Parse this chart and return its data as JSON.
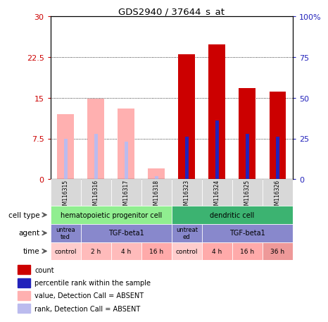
{
  "title": "GDS2940 / 37644_s_at",
  "samples": [
    "GSM116315",
    "GSM116316",
    "GSM116317",
    "GSM116318",
    "GSM116323",
    "GSM116324",
    "GSM116325",
    "GSM116326"
  ],
  "expression_values": [
    12.0,
    14.8,
    13.0,
    2.0,
    23.0,
    24.8,
    16.8,
    16.2
  ],
  "expression_absent": [
    true,
    true,
    true,
    true,
    false,
    false,
    false,
    false
  ],
  "percentile_values": [
    25.0,
    28.0,
    23.0,
    2.0,
    26.0,
    36.0,
    28.0,
    26.0
  ],
  "percentile_absent": [
    true,
    true,
    true,
    true,
    false,
    false,
    false,
    false
  ],
  "ylim_left": [
    0,
    30
  ],
  "ylim_right": [
    0,
    100
  ],
  "yticks_left": [
    0,
    7.5,
    15,
    22.5,
    30
  ],
  "yticks_right": [
    0,
    25,
    50,
    75,
    100
  ],
  "bar_color_present": "#CC0000",
  "bar_color_absent": "#FFB0B0",
  "rank_color_present": "#2222BB",
  "rank_color_absent": "#BBBBEE",
  "bar_width": 0.55,
  "rank_bar_width": 0.12,
  "legend_items": [
    {
      "color": "#CC0000",
      "label": "count"
    },
    {
      "color": "#2222BB",
      "label": "percentile rank within the sample"
    },
    {
      "color": "#FFB0B0",
      "label": "value, Detection Call = ABSENT"
    },
    {
      "color": "#BBBBEE",
      "label": "rank, Detection Call = ABSENT"
    }
  ],
  "cell_type_color1": "#90EE90",
  "cell_type_color2": "#3CB371",
  "agent_color": "#8888CC",
  "time_colors": [
    "#FFCCCC",
    "#FFBBBB",
    "#FFBBBB",
    "#FFAAAA",
    "#FFCCCC",
    "#FFAAAA",
    "#FFAAAA",
    "#EE9999"
  ],
  "time_labels": [
    "control",
    "2 h",
    "4 h",
    "16 h",
    "control",
    "4 h",
    "16 h",
    "36 h"
  ],
  "left_axis_color": "#CC0000",
  "right_axis_color": "#2222BB"
}
